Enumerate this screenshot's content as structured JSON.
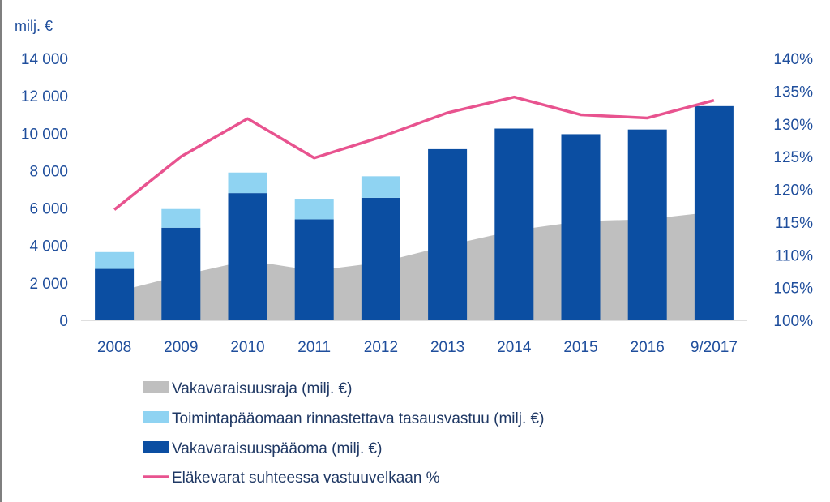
{
  "colors": {
    "axis_text": "#1f4e9c",
    "category_text": "#1f4e9c",
    "legend_text": "#1f3864",
    "area": "#bfbfbf",
    "extra": "#8fd3f2",
    "capital": "#0b4ea2",
    "line": "#e8538f",
    "axis_line": "#bfbfbf",
    "frame": "#7f7f7f"
  },
  "chart_data": {
    "type": "bar",
    "unit_label": "milj. €",
    "categories": [
      "2008",
      "2009",
      "2010",
      "2011",
      "2012",
      "2013",
      "2014",
      "2015",
      "2016",
      "9/2017"
    ],
    "ylim": [
      0,
      14000
    ],
    "y_ticks": [
      0,
      2000,
      4000,
      6000,
      8000,
      10000,
      12000,
      14000
    ],
    "y_tick_labels": [
      "0",
      "2 000",
      "4 000",
      "6 000",
      "8 000",
      "10 000",
      "12 000",
      "14 000"
    ],
    "y2lim": [
      100,
      140
    ],
    "y2_tick_labels": [
      "100%",
      "105%",
      "110%",
      "115%",
      "120%",
      "125%",
      "130%",
      "135%",
      "140%"
    ],
    "grid": false,
    "legend_position": "bottom",
    "series": [
      {
        "name": "Vakavaraisuusraja (milj. €)",
        "kind": "area",
        "values": [
          1500,
          2400,
          3200,
          2650,
          3100,
          4000,
          4800,
          5300,
          5400,
          5800
        ]
      },
      {
        "name": "Toimintapääomaan rinnastettava tasausvastuu (milj. €)",
        "kind": "stacked-bar",
        "values": [
          900,
          1000,
          1100,
          1100,
          1150,
          0,
          0,
          0,
          0,
          0
        ]
      },
      {
        "name": "Vakavaraisuuspääoma (milj. €)",
        "kind": "bar",
        "values": [
          2750,
          4950,
          6800,
          5400,
          6550,
          9150,
          10250,
          9950,
          10200,
          11450
        ]
      },
      {
        "name": "Eläkevarat suhteessa vastuuvelkaan %",
        "kind": "line",
        "axis": "right",
        "values": [
          116.9,
          125.0,
          130.8,
          124.8,
          128.0,
          131.7,
          134.1,
          131.4,
          130.9,
          133.6
        ]
      }
    ]
  }
}
